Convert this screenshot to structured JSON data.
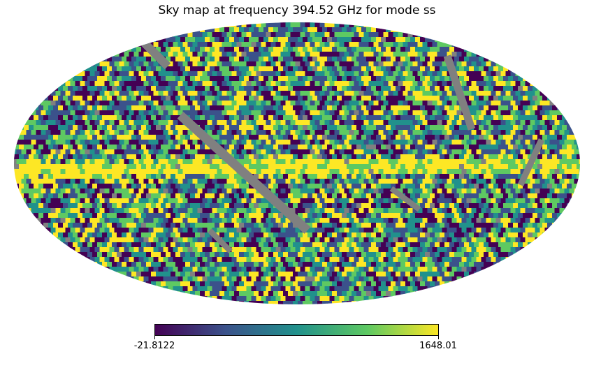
{
  "title": "Sky map at frequency 394.52 GHz for mode ss",
  "projection": "Mollweide",
  "colormap": {
    "name": "viridis",
    "stops": [
      "#440154",
      "#3b528b",
      "#21918c",
      "#5ec962",
      "#fde725"
    ],
    "bad_color": "#808080"
  },
  "colorbar": {
    "min_label": "-21.8122",
    "max_label": "1648.01",
    "min": -21.8122,
    "max": 1648.01,
    "orientation": "horizontal"
  },
  "features": {
    "galactic_plane_band": true,
    "masked_stripes": "diagonal gray scan-stripe gaps",
    "pixelization": "HEALPix, coarse"
  }
}
